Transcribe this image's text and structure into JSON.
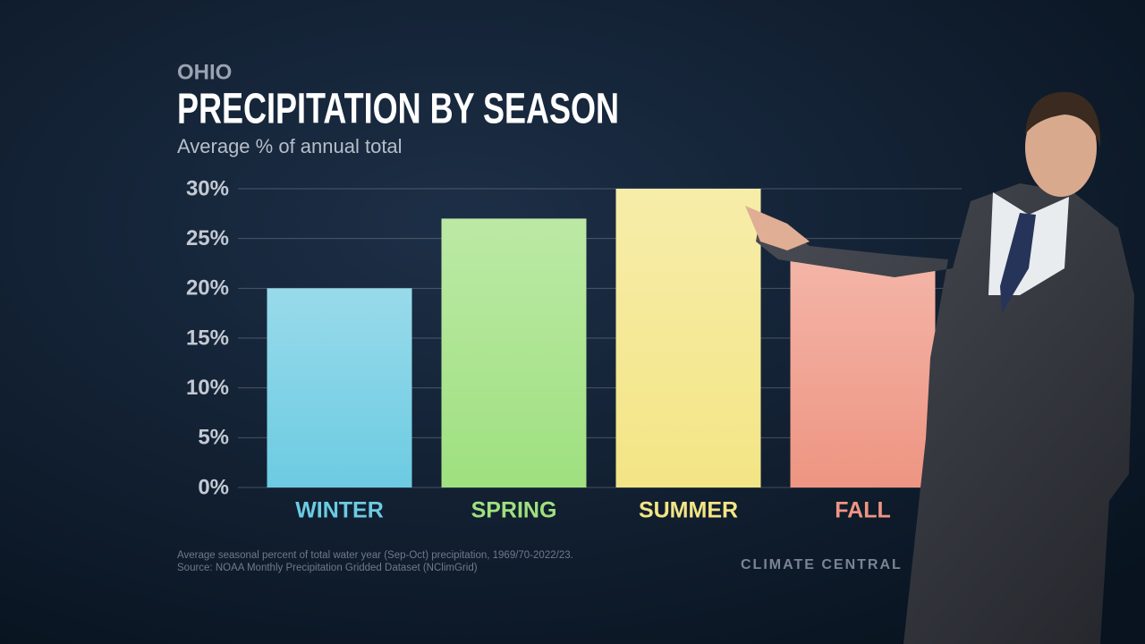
{
  "chart_data": {
    "type": "bar",
    "supertitle": "OHIO",
    "title": "PRECIPITATION BY SEASON",
    "subtitle": "Average % of annual total",
    "categories": [
      "WINTER",
      "SPRING",
      "SUMMER",
      "FALL"
    ],
    "values": [
      20,
      27,
      30,
      23
    ],
    "colors": [
      "#6ccbe2",
      "#9fe07f",
      "#f3e585",
      "#ee9582"
    ],
    "ylim": [
      0,
      30
    ],
    "yticks": [
      {
        "value": 0,
        "label": "0%"
      },
      {
        "value": 5,
        "label": "5%"
      },
      {
        "value": 10,
        "label": "10%"
      },
      {
        "value": 15,
        "label": "15%"
      },
      {
        "value": 20,
        "label": "20%"
      },
      {
        "value": 25,
        "label": "25%"
      },
      {
        "value": 30,
        "label": "30%"
      }
    ],
    "grid": true,
    "notes": [
      "Average seasonal percent of total water year (Sep-Oct) precipitation, 1969/70-2022/23.",
      "Source: NOAA Monthly Precipitation Gridded Dataset (NClimGrid)"
    ],
    "logo": "CLIMATE CENTRAL"
  }
}
